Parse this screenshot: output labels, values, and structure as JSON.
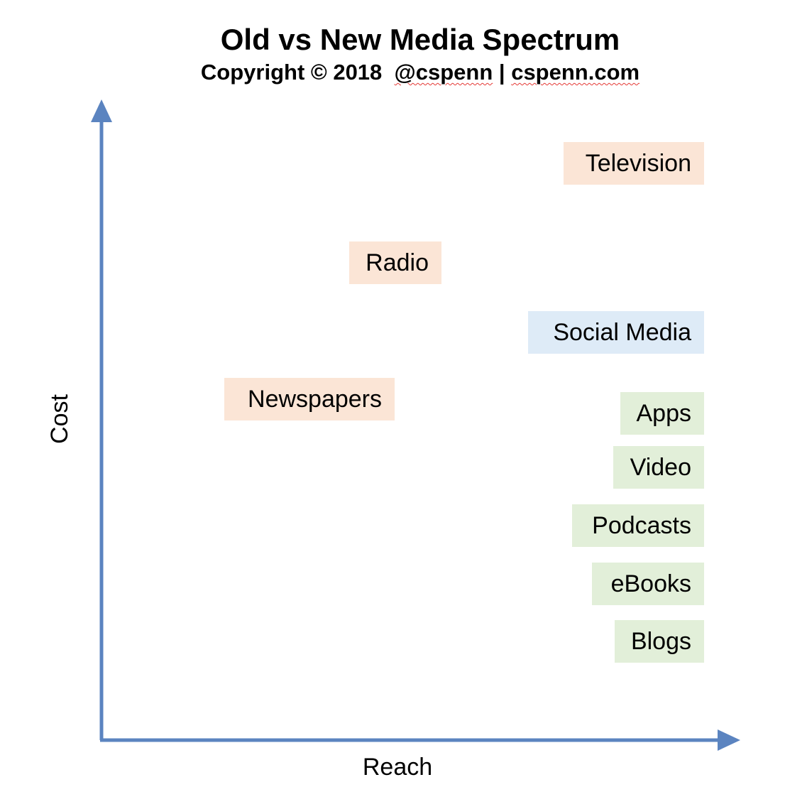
{
  "title": "Old vs New Media Spectrum",
  "subtitle": {
    "prefix": "Copyright © 2018  ",
    "handle": "@cspenn",
    "separator": " | ",
    "site": "cspenn.com"
  },
  "axes": {
    "y_label": "Cost",
    "x_label": "Reach",
    "color": "#5b84c0"
  },
  "colors": {
    "old_media": "#fbe5d6",
    "social_media": "#deebf7",
    "new_media": "#e2efd9"
  },
  "items": [
    {
      "id": "television",
      "label": "Television",
      "group": "old"
    },
    {
      "id": "radio",
      "label": "Radio",
      "group": "old"
    },
    {
      "id": "social-media",
      "label": "Social Media",
      "group": "social"
    },
    {
      "id": "newspapers",
      "label": "Newspapers",
      "group": "old"
    },
    {
      "id": "apps",
      "label": "Apps",
      "group": "new"
    },
    {
      "id": "video",
      "label": "Video",
      "group": "new"
    },
    {
      "id": "podcasts",
      "label": "Podcasts",
      "group": "new"
    },
    {
      "id": "ebooks",
      "label": "eBooks",
      "group": "new"
    },
    {
      "id": "blogs",
      "label": "Blogs",
      "group": "new"
    }
  ]
}
